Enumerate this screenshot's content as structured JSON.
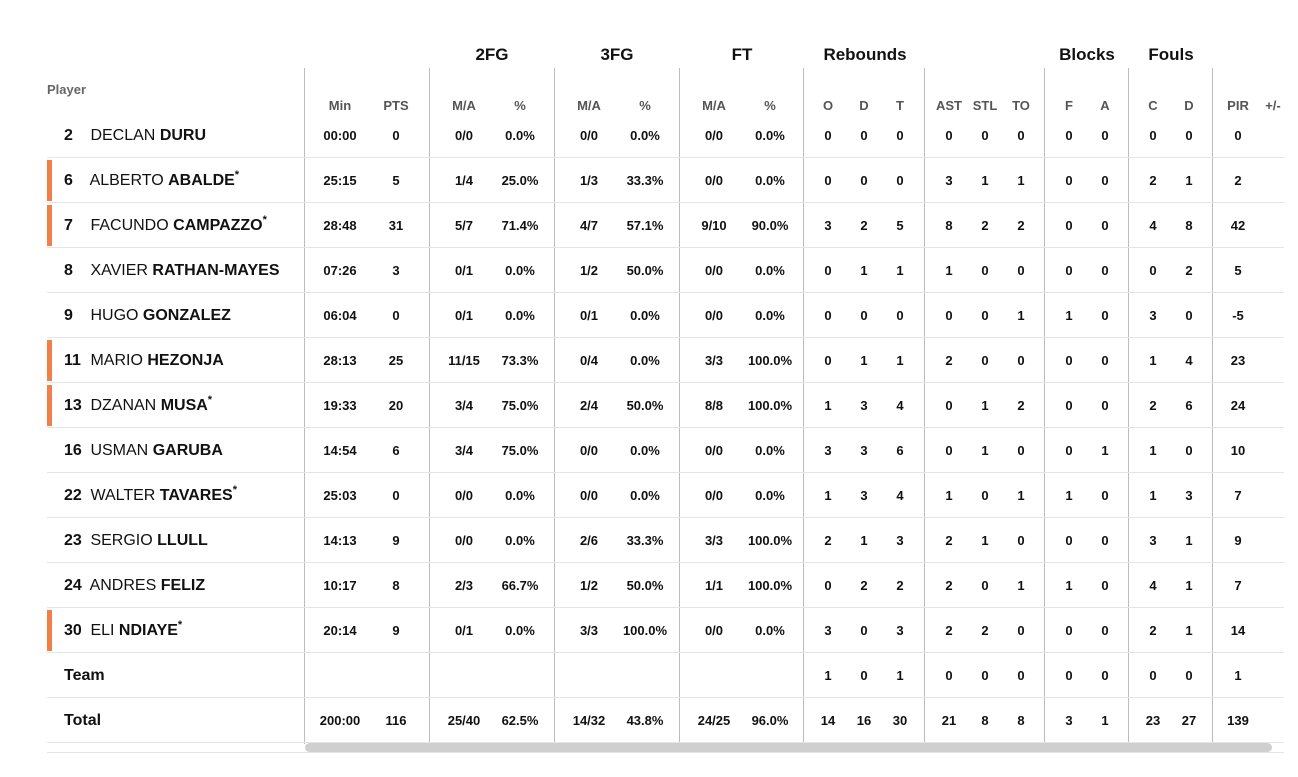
{
  "groups": {
    "fg2": "2FG",
    "fg3": "3FG",
    "ft": "FT",
    "rebounds": "Rebounds",
    "blocks": "Blocks",
    "fouls": "Fouls"
  },
  "player_label": "Player",
  "columns": {
    "min": "Min",
    "pts": "PTS",
    "fg2_ma": "M/A",
    "fg2_pct": "%",
    "fg3_ma": "M/A",
    "fg3_pct": "%",
    "ft_ma": "M/A",
    "ft_pct": "%",
    "o": "O",
    "d": "D",
    "t": "T",
    "ast": "AST",
    "stl": "STL",
    "to": "TO",
    "bf": "F",
    "ba": "A",
    "fc": "C",
    "fd": "D",
    "pir": "PIR",
    "pm": "+/-"
  },
  "accent_color": "#f07f4a",
  "rows": [
    {
      "num": "2",
      "first": "DECLAN",
      "last": "DURU",
      "star": "",
      "starter": false,
      "min": "00:00",
      "pts": "0",
      "fg2_ma": "0/0",
      "fg2_pct": "0.0%",
      "fg3_ma": "0/0",
      "fg3_pct": "0.0%",
      "ft_ma": "0/0",
      "ft_pct": "0.0%",
      "o": "0",
      "d": "0",
      "t": "0",
      "ast": "0",
      "stl": "0",
      "to": "0",
      "bf": "0",
      "ba": "0",
      "fc": "0",
      "fd": "0",
      "pir": "0"
    },
    {
      "num": "6",
      "first": "ALBERTO",
      "last": "ABALDE",
      "star": "*",
      "starter": true,
      "min": "25:15",
      "pts": "5",
      "fg2_ma": "1/4",
      "fg2_pct": "25.0%",
      "fg3_ma": "1/3",
      "fg3_pct": "33.3%",
      "ft_ma": "0/0",
      "ft_pct": "0.0%",
      "o": "0",
      "d": "0",
      "t": "0",
      "ast": "3",
      "stl": "1",
      "to": "1",
      "bf": "0",
      "ba": "0",
      "fc": "2",
      "fd": "1",
      "pir": "2"
    },
    {
      "num": "7",
      "first": "FACUNDO",
      "last": "CAMPAZZO",
      "star": "*",
      "starter": true,
      "min": "28:48",
      "pts": "31",
      "fg2_ma": "5/7",
      "fg2_pct": "71.4%",
      "fg3_ma": "4/7",
      "fg3_pct": "57.1%",
      "ft_ma": "9/10",
      "ft_pct": "90.0%",
      "o": "3",
      "d": "2",
      "t": "5",
      "ast": "8",
      "stl": "2",
      "to": "2",
      "bf": "0",
      "ba": "0",
      "fc": "4",
      "fd": "8",
      "pir": "42"
    },
    {
      "num": "8",
      "first": "XAVIER",
      "last": "RATHAN-MAYES",
      "star": "",
      "starter": false,
      "min": "07:26",
      "pts": "3",
      "fg2_ma": "0/1",
      "fg2_pct": "0.0%",
      "fg3_ma": "1/2",
      "fg3_pct": "50.0%",
      "ft_ma": "0/0",
      "ft_pct": "0.0%",
      "o": "0",
      "d": "1",
      "t": "1",
      "ast": "1",
      "stl": "0",
      "to": "0",
      "bf": "0",
      "ba": "0",
      "fc": "0",
      "fd": "2",
      "pir": "5"
    },
    {
      "num": "9",
      "first": "HUGO",
      "last": "GONZALEZ",
      "star": "",
      "starter": false,
      "min": "06:04",
      "pts": "0",
      "fg2_ma": "0/1",
      "fg2_pct": "0.0%",
      "fg3_ma": "0/1",
      "fg3_pct": "0.0%",
      "ft_ma": "0/0",
      "ft_pct": "0.0%",
      "o": "0",
      "d": "0",
      "t": "0",
      "ast": "0",
      "stl": "0",
      "to": "1",
      "bf": "1",
      "ba": "0",
      "fc": "3",
      "fd": "0",
      "pir": "-5"
    },
    {
      "num": "11",
      "first": "MARIO",
      "last": "HEZONJA",
      "star": "",
      "starter": true,
      "min": "28:13",
      "pts": "25",
      "fg2_ma": "11/15",
      "fg2_pct": "73.3%",
      "fg3_ma": "0/4",
      "fg3_pct": "0.0%",
      "ft_ma": "3/3",
      "ft_pct": "100.0%",
      "o": "0",
      "d": "1",
      "t": "1",
      "ast": "2",
      "stl": "0",
      "to": "0",
      "bf": "0",
      "ba": "0",
      "fc": "1",
      "fd": "4",
      "pir": "23"
    },
    {
      "num": "13",
      "first": "DZANAN",
      "last": "MUSA",
      "star": "*",
      "starter": true,
      "min": "19:33",
      "pts": "20",
      "fg2_ma": "3/4",
      "fg2_pct": "75.0%",
      "fg3_ma": "2/4",
      "fg3_pct": "50.0%",
      "ft_ma": "8/8",
      "ft_pct": "100.0%",
      "o": "1",
      "d": "3",
      "t": "4",
      "ast": "0",
      "stl": "1",
      "to": "2",
      "bf": "0",
      "ba": "0",
      "fc": "2",
      "fd": "6",
      "pir": "24"
    },
    {
      "num": "16",
      "first": "USMAN",
      "last": "GARUBA",
      "star": "",
      "starter": false,
      "min": "14:54",
      "pts": "6",
      "fg2_ma": "3/4",
      "fg2_pct": "75.0%",
      "fg3_ma": "0/0",
      "fg3_pct": "0.0%",
      "ft_ma": "0/0",
      "ft_pct": "0.0%",
      "o": "3",
      "d": "3",
      "t": "6",
      "ast": "0",
      "stl": "1",
      "to": "0",
      "bf": "0",
      "ba": "1",
      "fc": "1",
      "fd": "0",
      "pir": "10"
    },
    {
      "num": "22",
      "first": "WALTER",
      "last": "TAVARES",
      "star": "*",
      "starter": false,
      "min": "25:03",
      "pts": "0",
      "fg2_ma": "0/0",
      "fg2_pct": "0.0%",
      "fg3_ma": "0/0",
      "fg3_pct": "0.0%",
      "ft_ma": "0/0",
      "ft_pct": "0.0%",
      "o": "1",
      "d": "3",
      "t": "4",
      "ast": "1",
      "stl": "0",
      "to": "1",
      "bf": "1",
      "ba": "0",
      "fc": "1",
      "fd": "3",
      "pir": "7"
    },
    {
      "num": "23",
      "first": "SERGIO",
      "last": "LLULL",
      "star": "",
      "starter": false,
      "min": "14:13",
      "pts": "9",
      "fg2_ma": "0/0",
      "fg2_pct": "0.0%",
      "fg3_ma": "2/6",
      "fg3_pct": "33.3%",
      "ft_ma": "3/3",
      "ft_pct": "100.0%",
      "o": "2",
      "d": "1",
      "t": "3",
      "ast": "2",
      "stl": "1",
      "to": "0",
      "bf": "0",
      "ba": "0",
      "fc": "3",
      "fd": "1",
      "pir": "9"
    },
    {
      "num": "24",
      "first": "ANDRES",
      "last": "FELIZ",
      "star": "",
      "starter": false,
      "min": "10:17",
      "pts": "8",
      "fg2_ma": "2/3",
      "fg2_pct": "66.7%",
      "fg3_ma": "1/2",
      "fg3_pct": "50.0%",
      "ft_ma": "1/1",
      "ft_pct": "100.0%",
      "o": "0",
      "d": "2",
      "t": "2",
      "ast": "2",
      "stl": "0",
      "to": "1",
      "bf": "1",
      "ba": "0",
      "fc": "4",
      "fd": "1",
      "pir": "7"
    },
    {
      "num": "30",
      "first": "ELI",
      "last": "NDIAYE",
      "star": "*",
      "starter": true,
      "min": "20:14",
      "pts": "9",
      "fg2_ma": "0/1",
      "fg2_pct": "0.0%",
      "fg3_ma": "3/3",
      "fg3_pct": "100.0%",
      "ft_ma": "0/0",
      "ft_pct": "0.0%",
      "o": "3",
      "d": "0",
      "t": "3",
      "ast": "2",
      "stl": "2",
      "to": "0",
      "bf": "0",
      "ba": "0",
      "fc": "2",
      "fd": "1",
      "pir": "14"
    }
  ],
  "team_row": {
    "label": "Team",
    "min": "",
    "pts": "",
    "fg2_ma": "",
    "fg2_pct": "",
    "fg3_ma": "",
    "fg3_pct": "",
    "ft_ma": "",
    "ft_pct": "",
    "o": "1",
    "d": "0",
    "t": "1",
    "ast": "0",
    "stl": "0",
    "to": "0",
    "bf": "0",
    "ba": "0",
    "fc": "0",
    "fd": "0",
    "pir": "1"
  },
  "total_row": {
    "label": "Total",
    "min": "200:00",
    "pts": "116",
    "fg2_ma": "25/40",
    "fg2_pct": "62.5%",
    "fg3_ma": "14/32",
    "fg3_pct": "43.8%",
    "ft_ma": "24/25",
    "ft_pct": "96.0%",
    "o": "14",
    "d": "16",
    "t": "30",
    "ast": "21",
    "stl": "8",
    "to": "8",
    "bf": "3",
    "ba": "1",
    "fc": "23",
    "fd": "27",
    "pir": "139"
  }
}
